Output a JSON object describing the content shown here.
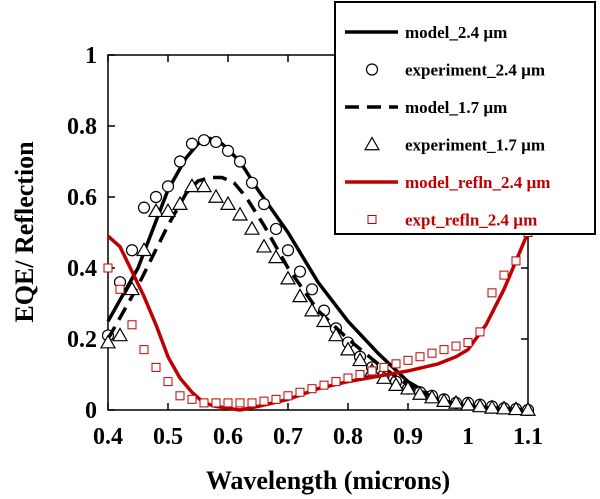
{
  "chart_data": {
    "type": "line",
    "xlabel": "Wavelength (microns)",
    "ylabel": "EQE/ Reflection",
    "xlim": [
      0.4,
      1.1
    ],
    "ylim": [
      0,
      1
    ],
    "x_ticks": [
      0.4,
      0.5,
      0.6,
      0.7,
      0.8,
      0.9,
      1.0,
      1.1
    ],
    "x_tick_labels": [
      "0.4",
      "0.5",
      "0.6",
      "0.7",
      "0.8",
      "0.9",
      "1",
      "1.1"
    ],
    "y_ticks": [
      0,
      0.2,
      0.4,
      0.6,
      0.8,
      1.0
    ],
    "y_tick_labels": [
      "0",
      "0.2",
      "0.4",
      "0.6",
      "0.8",
      "1"
    ],
    "grid": false,
    "legend_position": "top-right",
    "series": [
      {
        "name": "model_2.4 µm",
        "style": "solid-line",
        "color": "#000000",
        "x": [
          0.4,
          0.45,
          0.5,
          0.53,
          0.55,
          0.57,
          0.59,
          0.62,
          0.65,
          0.7,
          0.75,
          0.8,
          0.85,
          0.9,
          0.95,
          1.0,
          1.05,
          1.1
        ],
        "y": [
          0.25,
          0.4,
          0.62,
          0.71,
          0.75,
          0.765,
          0.75,
          0.7,
          0.62,
          0.5,
          0.36,
          0.25,
          0.16,
          0.08,
          0.03,
          0.01,
          0.005,
          0.0
        ]
      },
      {
        "name": "experiment_2.4 µm",
        "style": "circle-markers",
        "color": "#000000",
        "x": [
          0.4,
          0.42,
          0.44,
          0.46,
          0.48,
          0.5,
          0.52,
          0.54,
          0.56,
          0.58,
          0.6,
          0.62,
          0.64,
          0.66,
          0.68,
          0.7,
          0.72,
          0.74,
          0.76,
          0.78,
          0.8,
          0.82,
          0.84,
          0.86,
          0.88,
          0.9,
          0.92,
          0.94,
          0.96,
          0.98,
          1.0,
          1.02,
          1.04,
          1.06,
          1.08,
          1.1
        ],
        "y": [
          0.21,
          0.36,
          0.45,
          0.57,
          0.6,
          0.63,
          0.7,
          0.75,
          0.76,
          0.755,
          0.73,
          0.7,
          0.64,
          0.58,
          0.51,
          0.45,
          0.39,
          0.34,
          0.28,
          0.23,
          0.19,
          0.15,
          0.12,
          0.1,
          0.08,
          0.06,
          0.05,
          0.04,
          0.03,
          0.02,
          0.02,
          0.015,
          0.01,
          0.005,
          0.003,
          0.0
        ]
      },
      {
        "name": "model_1.7 µm",
        "style": "dashed-line",
        "color": "#000000",
        "x": [
          0.4,
          0.45,
          0.5,
          0.53,
          0.55,
          0.57,
          0.59,
          0.61,
          0.63,
          0.66,
          0.7,
          0.75,
          0.8,
          0.85,
          0.9,
          0.95,
          1.0,
          1.05,
          1.1
        ],
        "y": [
          0.2,
          0.35,
          0.52,
          0.61,
          0.645,
          0.655,
          0.655,
          0.64,
          0.6,
          0.52,
          0.4,
          0.28,
          0.2,
          0.13,
          0.07,
          0.03,
          0.01,
          0.005,
          0.0
        ]
      },
      {
        "name": "experiment_1.7 µm",
        "style": "triangle-markers",
        "color": "#000000",
        "x": [
          0.4,
          0.42,
          0.44,
          0.46,
          0.48,
          0.5,
          0.52,
          0.54,
          0.56,
          0.58,
          0.6,
          0.62,
          0.64,
          0.66,
          0.68,
          0.7,
          0.72,
          0.74,
          0.76,
          0.78,
          0.8,
          0.82,
          0.84,
          0.86,
          0.88,
          0.9,
          0.92,
          0.94,
          0.96,
          0.98,
          1.0,
          1.02,
          1.04,
          1.06,
          1.08,
          1.1
        ],
        "y": [
          0.19,
          0.21,
          0.34,
          0.45,
          0.56,
          0.56,
          0.58,
          0.63,
          0.63,
          0.6,
          0.58,
          0.55,
          0.51,
          0.46,
          0.43,
          0.37,
          0.32,
          0.28,
          0.25,
          0.21,
          0.17,
          0.14,
          0.11,
          0.09,
          0.07,
          0.06,
          0.045,
          0.035,
          0.025,
          0.02,
          0.015,
          0.01,
          0.006,
          0.004,
          0.002,
          0.0
        ]
      },
      {
        "name": "model_refln_2.4 µm",
        "style": "solid-line",
        "color": "#c00000",
        "x": [
          0.4,
          0.42,
          0.44,
          0.46,
          0.48,
          0.5,
          0.52,
          0.54,
          0.56,
          0.58,
          0.6,
          0.62,
          0.65,
          0.7,
          0.75,
          0.8,
          0.85,
          0.9,
          0.95,
          0.98,
          1.0,
          1.03,
          1.06,
          1.08,
          1.1
        ],
        "y": [
          0.49,
          0.46,
          0.39,
          0.32,
          0.24,
          0.15,
          0.09,
          0.05,
          0.02,
          0.01,
          0.005,
          0.0,
          0.01,
          0.03,
          0.06,
          0.08,
          0.095,
          0.11,
          0.13,
          0.15,
          0.17,
          0.24,
          0.34,
          0.42,
          0.5
        ]
      },
      {
        "name": "expt_refln_2.4 µm",
        "style": "square-markers",
        "color": "#c00000",
        "x": [
          0.4,
          0.42,
          0.44,
          0.46,
          0.48,
          0.5,
          0.52,
          0.54,
          0.56,
          0.58,
          0.6,
          0.62,
          0.64,
          0.66,
          0.68,
          0.7,
          0.72,
          0.74,
          0.76,
          0.78,
          0.8,
          0.82,
          0.84,
          0.86,
          0.88,
          0.9,
          0.92,
          0.94,
          0.96,
          0.98,
          1.0,
          1.02,
          1.04,
          1.06,
          1.08,
          1.1
        ],
        "y": [
          0.4,
          0.34,
          0.24,
          0.17,
          0.12,
          0.08,
          0.04,
          0.03,
          0.02,
          0.02,
          0.02,
          0.02,
          0.02,
          0.025,
          0.03,
          0.04,
          0.05,
          0.06,
          0.07,
          0.08,
          0.09,
          0.1,
          0.11,
          0.12,
          0.13,
          0.14,
          0.15,
          0.16,
          0.17,
          0.18,
          0.19,
          0.22,
          0.33,
          0.38,
          0.42,
          0.5
        ]
      }
    ]
  }
}
